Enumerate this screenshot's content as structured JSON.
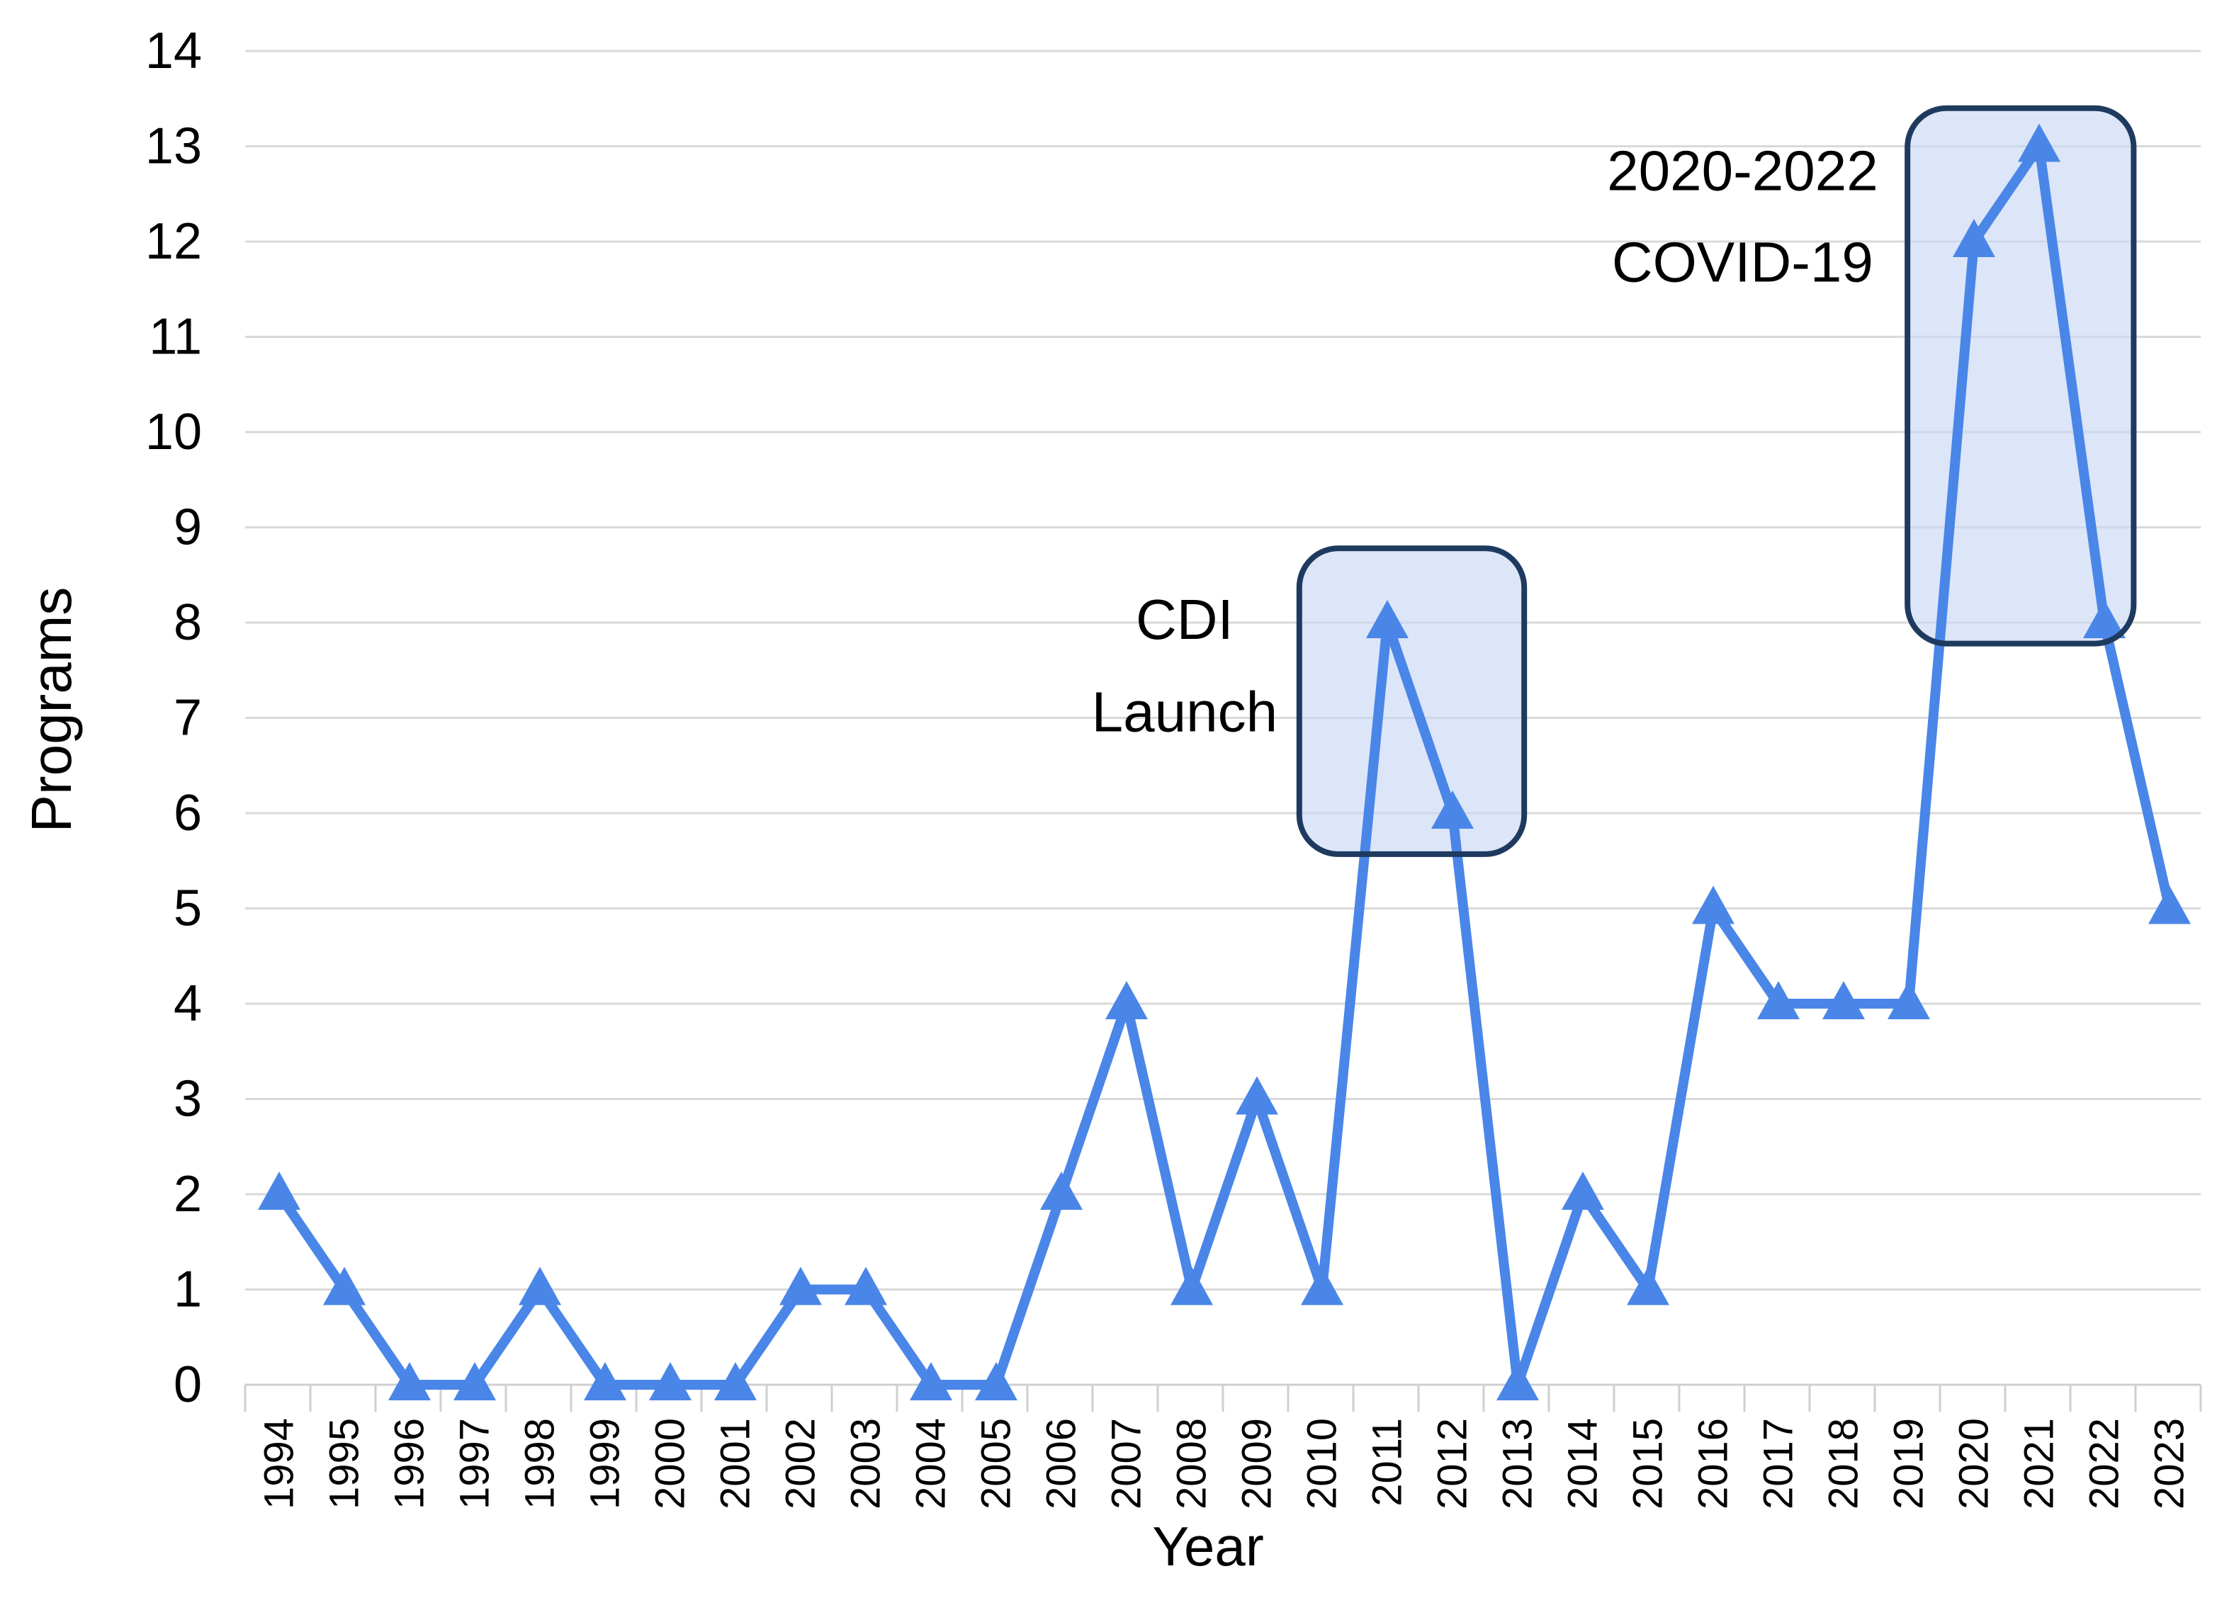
{
  "chart_data": {
    "type": "line",
    "title": "",
    "xlabel": "Year",
    "ylabel": "Programs",
    "categories": [
      "1994",
      "1995",
      "1996",
      "1997",
      "1998",
      "1999",
      "2000",
      "2001",
      "2002",
      "2003",
      "2004",
      "2005",
      "2006",
      "2007",
      "2008",
      "2009",
      "2010",
      "2011",
      "2012",
      "2013",
      "2014",
      "2015",
      "2016",
      "2017",
      "2018",
      "2019",
      "2020",
      "2021",
      "2022",
      "2023"
    ],
    "series": [
      {
        "name": "Programs",
        "values": [
          2,
          1,
          0,
          0,
          1,
          0,
          0,
          0,
          1,
          1,
          0,
          0,
          2,
          4,
          1,
          3,
          1,
          8,
          6,
          0,
          2,
          1,
          5,
          4,
          4,
          4,
          12,
          13,
          8,
          5
        ]
      }
    ],
    "ylim": [
      0,
      14
    ],
    "ytick_step": 1,
    "ytick_labels": [
      "0",
      "1",
      "2",
      "3",
      "4",
      "5",
      "6",
      "7",
      "8",
      "9",
      "10",
      "11",
      "12",
      "13",
      "14"
    ],
    "grid": "horizontal",
    "legend": "none",
    "marker": "triangle-up",
    "colors": {
      "line": "#4a86e8",
      "marker": "#4a86e8",
      "gridline": "#d9d9d9",
      "axis": "#cfcfcf",
      "box_fill": "#c7d7f3",
      "box_border": "#1e3a5f",
      "text": "#000000"
    },
    "annotations": [
      {
        "id": "cdi-launch",
        "text_lines": [
          "CDI",
          "Launch"
        ],
        "text_anchor_index": 13.89,
        "text_line_values": [
          7.83,
          6.86
        ],
        "box": {
          "x0_index": 15.65,
          "x1_index": 19.1,
          "y0_value": 5.57,
          "y1_value": 8.78
        }
      },
      {
        "id": "covid-2020-2022",
        "text_lines": [
          "2020-2022",
          "COVID-19"
        ],
        "text_anchor_index": 22.45,
        "text_line_values": [
          12.54,
          11.58
        ],
        "box": {
          "x0_index": 24.98,
          "x1_index": 28.45,
          "y0_value": 7.78,
          "y1_value": 13.4
        }
      }
    ]
  }
}
